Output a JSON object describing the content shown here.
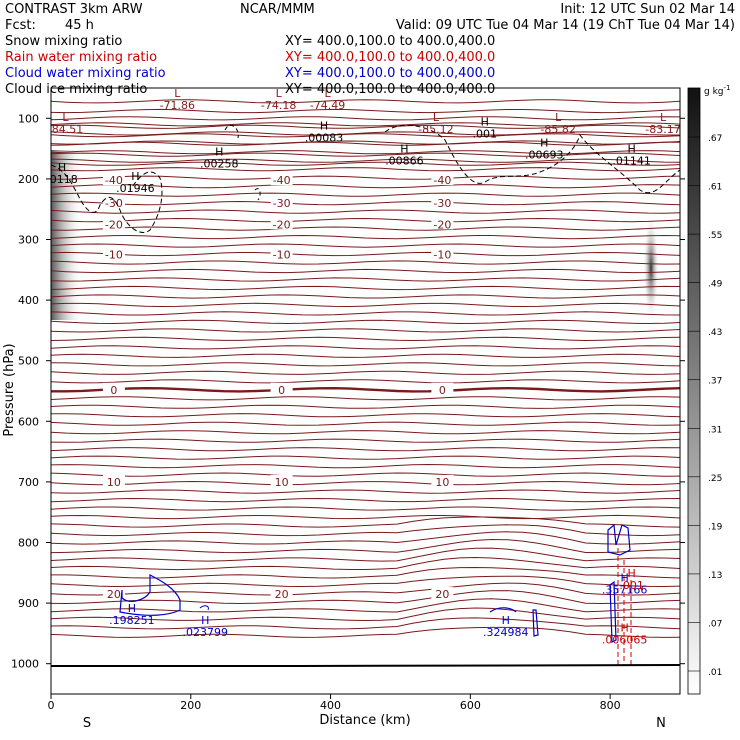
{
  "header": {
    "model": "CONTRAST  3km ARW",
    "center": "NCAR/MMM",
    "init": "Init: 12 UTC Sun 02 Mar 14",
    "fcst_label": "Fcst:",
    "fcst_value": "45 h",
    "valid": "Valid: 09 UTC Tue 04 Mar 14 (19 ChT Tue 04 Mar 14)"
  },
  "fields": [
    {
      "name": "Snow mixing ratio",
      "xy": "XY= 400.0,100.0 to 400.0,400.0",
      "color": "#000000"
    },
    {
      "name": "Rain water mixing ratio",
      "xy": "XY= 400.0,100.0 to 400.0,400.0",
      "color": "#cc0000"
    },
    {
      "name": "Cloud water mixing ratio",
      "xy": "XY= 400.0,100.0 to 400.0,400.0",
      "color": "#0000cc"
    },
    {
      "name": "Cloud ice mixing ratio",
      "xy": "XY= 400.0,100.0 to 400.0,400.0",
      "color": "#000000"
    }
  ],
  "chart_data": {
    "type": "cross-section",
    "xlabel": "Distance (km)",
    "ylabel": "Pressure (hPa)",
    "xlim": [
      0,
      900
    ],
    "ylim": [
      1050,
      50
    ],
    "x_ticks": [
      0,
      200,
      400,
      600,
      800
    ],
    "y_ticks": [
      100,
      200,
      300,
      400,
      500,
      600,
      700,
      800,
      900,
      1000
    ],
    "end_labels": {
      "left": "S",
      "right": "N"
    },
    "colorbar": {
      "unit": "g kg",
      "unit_exp": "-1",
      "levels": [
        ".67",
        ".61",
        ".55",
        ".49",
        ".43",
        ".37",
        ".31",
        ".25",
        ".19",
        ".13",
        ".07",
        ".01"
      ]
    },
    "temperature_isotherms": [
      {
        "value": -40,
        "label": "-40",
        "p": 202
      },
      {
        "value": -30,
        "label": "-30",
        "p": 240
      },
      {
        "value": -20,
        "label": "-20",
        "p": 275
      },
      {
        "value": -10,
        "label": "-10",
        "p": 325
      },
      {
        "value": 0,
        "label": "0",
        "p": 548
      },
      {
        "value": 10,
        "label": "10",
        "p": 700
      },
      {
        "value": 20,
        "label": "20",
        "p": 885
      }
    ],
    "extremes": [
      {
        "kind": "L",
        "value": "-84.51",
        "x": 15,
        "p": 108,
        "color": "#8b1a1a"
      },
      {
        "kind": "L",
        "value": "-71.86",
        "x": 175,
        "p": 68,
        "color": "#8b1a1a"
      },
      {
        "kind": "L",
        "value": "-74.18",
        "x": 320,
        "p": 68,
        "color": "#8b1a1a"
      },
      {
        "kind": "L",
        "value": "-74.49",
        "x": 390,
        "p": 68,
        "color": "#8b1a1a"
      },
      {
        "kind": "L",
        "value": "-85.12",
        "x": 545,
        "p": 108,
        "color": "#8b1a1a"
      },
      {
        "kind": "L",
        "value": "-85.82",
        "x": 720,
        "p": 108,
        "color": "#8b1a1a"
      },
      {
        "kind": "L",
        "value": "-83.17",
        "x": 870,
        "p": 108,
        "color": "#8b1a1a"
      },
      {
        "kind": "H",
        "value": ".0118",
        "x": 10,
        "p": 190,
        "color": "#000000"
      },
      {
        "kind": "H",
        "value": ".01946",
        "x": 115,
        "p": 205,
        "color": "#000000"
      },
      {
        "kind": "H",
        "value": ".00258",
        "x": 235,
        "p": 165,
        "color": "#000000"
      },
      {
        "kind": "H",
        "value": ".00083",
        "x": 385,
        "p": 122,
        "color": "#000000"
      },
      {
        "kind": "H",
        "value": ".001",
        "x": 615,
        "p": 115,
        "color": "#000000"
      },
      {
        "kind": "H",
        "value": ".00866",
        "x": 500,
        "p": 160,
        "color": "#000000"
      },
      {
        "kind": "H",
        "value": ".00693",
        "x": 700,
        "p": 150,
        "color": "#000000"
      },
      {
        "kind": "H",
        "value": ".01141",
        "x": 825,
        "p": 160,
        "color": "#000000"
      },
      {
        "kind": "H",
        "value": ".198251",
        "x": 110,
        "p": 918,
        "color": "#0000cc"
      },
      {
        "kind": "H",
        "value": ".023799",
        "x": 215,
        "p": 938,
        "color": "#0000cc"
      },
      {
        "kind": "H",
        "value": ".324984",
        "x": 645,
        "p": 938,
        "color": "#0000cc"
      },
      {
        "kind": "H",
        "value": ".357166",
        "x": 815,
        "p": 868,
        "color": "#0000cc"
      },
      {
        "kind": "H",
        "value": ".001",
        "x": 825,
        "p": 860,
        "color": "#cc0000"
      },
      {
        "kind": "H",
        "value": ".006065",
        "x": 815,
        "p": 950,
        "color": "#cc0000"
      }
    ]
  }
}
